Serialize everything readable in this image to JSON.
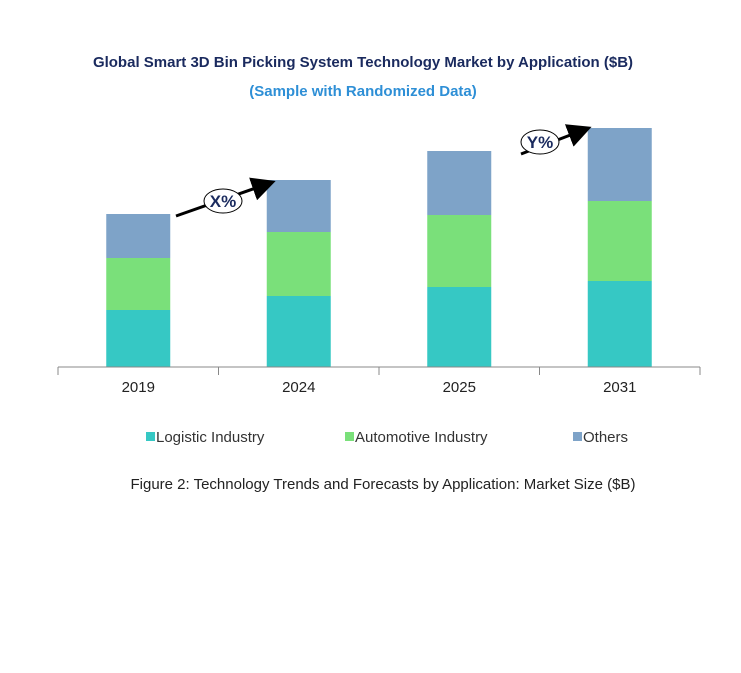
{
  "chart_data": {
    "type": "bar",
    "stacked": true,
    "title": "Global Smart 3D Bin Picking System Technology Market by Application ($B)",
    "subtitle": "(Sample with Randomized Data)",
    "categories": [
      "2019",
      "2024",
      "2025",
      "2031"
    ],
    "series": [
      {
        "name": "Logistic Industry",
        "color": "#36c8c4",
        "values": [
          5.7,
          7.1,
          8.0,
          8.6
        ]
      },
      {
        "name": "Automotive Industry",
        "color": "#7ae07a",
        "values": [
          5.2,
          6.4,
          7.2,
          8.0
        ]
      },
      {
        "name": "Others",
        "color": "#7ea3c8",
        "values": [
          4.4,
          5.2,
          6.4,
          7.3
        ]
      }
    ],
    "annotations": [
      "X%",
      "Y%"
    ],
    "legend_position": "bottom",
    "grid": false,
    "caption": "Figure 2: Technology  Trends  and Forecasts by  Application: Market Size ($B)"
  }
}
